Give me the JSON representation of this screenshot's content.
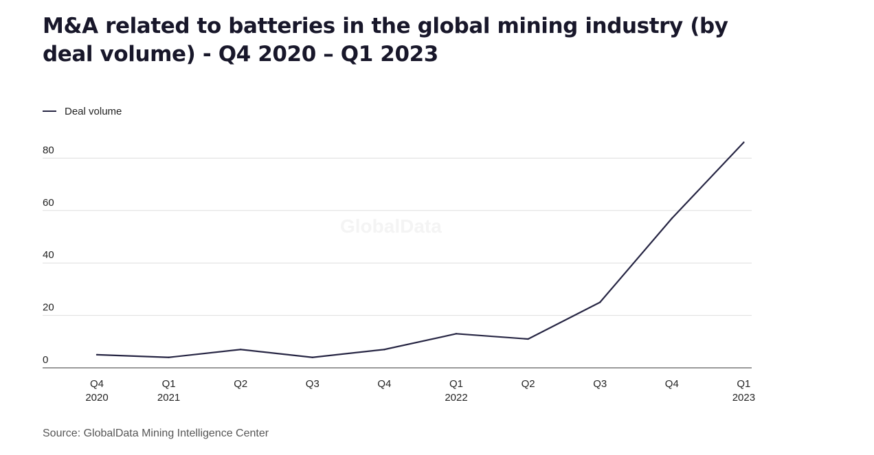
{
  "title": "M&A related to batteries in the global mining industry (by deal volume) - Q4 2020 – Q1 2023",
  "legend": {
    "label": "Deal volume"
  },
  "source": "Source: GlobalData Mining Intelligence Center",
  "watermark": "GlobalData",
  "colors": {
    "line": "#262543",
    "grid": "#dddddd",
    "axis": "#333333",
    "text": "#222222"
  },
  "chart_data": {
    "type": "line",
    "title": "M&A related to batteries in the global mining industry (by deal volume) - Q4 2020 – Q1 2023",
    "xlabel": "",
    "ylabel": "",
    "categories": [
      [
        "Q4",
        "2020"
      ],
      [
        "Q1",
        "2021"
      ],
      [
        "Q2"
      ],
      [
        "Q3"
      ],
      [
        "Q4"
      ],
      [
        "Q1",
        "2022"
      ],
      [
        "Q2"
      ],
      [
        "Q3"
      ],
      [
        "Q4"
      ],
      [
        "Q1",
        "2023"
      ]
    ],
    "series": [
      {
        "name": "Deal volume",
        "values": [
          5,
          4,
          7,
          4,
          7,
          13,
          11,
          25,
          57,
          86
        ]
      }
    ],
    "yticks": [
      0,
      20,
      40,
      60,
      80
    ],
    "ylim": [
      0,
      90
    ],
    "grid": true,
    "legend_position": "top-left"
  }
}
